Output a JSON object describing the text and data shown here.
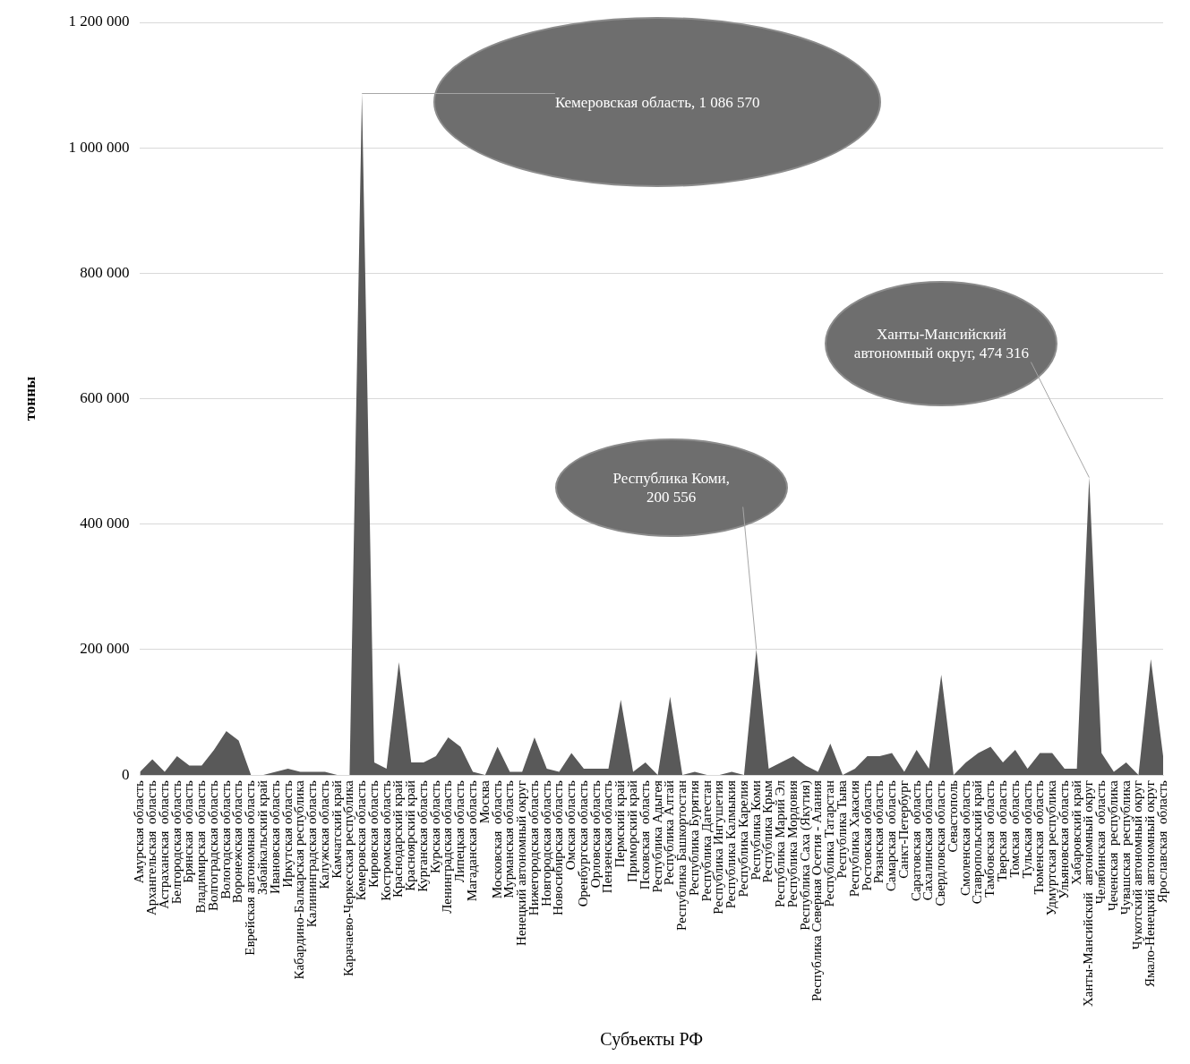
{
  "chart_data": {
    "type": "area",
    "xlabel": "Субъекты РФ",
    "ylabel": "тонны",
    "color": "#595959",
    "grid": "y",
    "ylim": [
      0,
      1200000
    ],
    "yticks": [
      {
        "value": 0,
        "label": "0"
      },
      {
        "value": 200000,
        "label": "200 000"
      },
      {
        "value": 400000,
        "label": "400 000"
      },
      {
        "value": 600000,
        "label": "600 000"
      },
      {
        "value": 800000,
        "label": "800 000"
      },
      {
        "value": 1000000,
        "label": "1 000 000"
      },
      {
        "value": 1200000,
        "label": "1 200 000"
      }
    ],
    "categories": [
      "Амурская область",
      "Архангельская  область",
      "Астраханская  область",
      "Белгородская область",
      "Брянская  область",
      "Владимирская  область",
      "Волгоградская область",
      "Вологодская область",
      "Воронежская область",
      "Еврейская автономная область",
      "Забайкальский край",
      "Ивановская область",
      "Иркутская область",
      "Кабардино-Балкарская республика",
      "Калининградская область",
      "Калужская область",
      "Камчатский край",
      "Карачаево-Черкесская республика",
      "Кемеровская область",
      "Кировская область",
      "Костромская область",
      "Краснодарский край",
      "Красноярский край",
      "Курганская область",
      "Курская область",
      "Ленинградская область",
      "Липецкая область",
      "Магаданская область",
      "Москва",
      "Московская  область",
      "Мурманская область",
      "Ненецкий автономный округ",
      "Нижегородская область",
      "Новгородская область",
      "Новосибирская область",
      "Омская область",
      "Оренбургская область",
      "Орловская область",
      "Пензенская область",
      "Пермский край",
      "Приморский край",
      "Псковская  область",
      "Республика Адыгея",
      "Республика Алтай",
      "Республика Башкортостан",
      "Республика Бурятия",
      "Республика Дагестан",
      "Республика Ингушетия",
      "Республика Калмыкия",
      "Республика Карелия",
      "Республика Коми",
      "Республика Крым",
      "Республика Марий Эл",
      "Республика Мордовия",
      "Республика Саха (Якутия)",
      "Республика Северная Осетия - Алания",
      "Республика Татарстан",
      "Республика Тыва",
      "Республика Хакасия",
      "Ростовская область",
      "Рязанская область",
      "Самарская  область",
      "Санкт-Петербург",
      "Саратовская  область",
      "Сахалинская область",
      "Свердловская область",
      "Севастополь",
      "Смоленская область",
      "Ставропольский край",
      "Тамбовская  область",
      "Тверская  область",
      "Томская  область",
      "Тульская область",
      "Тюменская  область",
      "Удмуртская республика",
      "Ульяновская область",
      "Хабаровский край",
      "Ханты-Мансийский  автономный округ",
      "Челябинская  область",
      "Чеченская  республика",
      "Чувашская  республика",
      "Чукотский автономный округ",
      "Ямало-Ненецкий автономный округ",
      "Ярославская  область"
    ],
    "values": [
      5000,
      25000,
      5000,
      30000,
      15000,
      15000,
      40000,
      70000,
      55000,
      0,
      0,
      5000,
      10000,
      5000,
      5000,
      5000,
      0,
      0,
      1086570,
      20000,
      10000,
      180000,
      20000,
      20000,
      30000,
      60000,
      45000,
      5000,
      0,
      45000,
      5000,
      5000,
      60000,
      10000,
      5000,
      35000,
      10000,
      10000,
      10000,
      120000,
      5000,
      20000,
      0,
      125000,
      0,
      5000,
      0,
      0,
      5000,
      0,
      200556,
      10000,
      20000,
      30000,
      15000,
      5000,
      50000,
      0,
      10000,
      30000,
      30000,
      35000,
      5000,
      40000,
      10000,
      160000,
      0,
      20000,
      35000,
      45000,
      20000,
      40000,
      10000,
      35000,
      35000,
      10000,
      10000,
      474316,
      35000,
      5000,
      20000,
      0,
      185000,
      30000
    ],
    "annotations": [
      {
        "text": "Кемеровская область, 1 086 570",
        "x": "Кемеровская область",
        "y": 1086570
      },
      {
        "text": "Республика Коми, 200 556",
        "x": "Республика Коми",
        "y": 200556
      },
      {
        "text": "Ханты-Мансийский автономный округ, 474 316",
        "x": "Ханты-Мансийский  автономный округ",
        "y": 474316
      }
    ]
  }
}
